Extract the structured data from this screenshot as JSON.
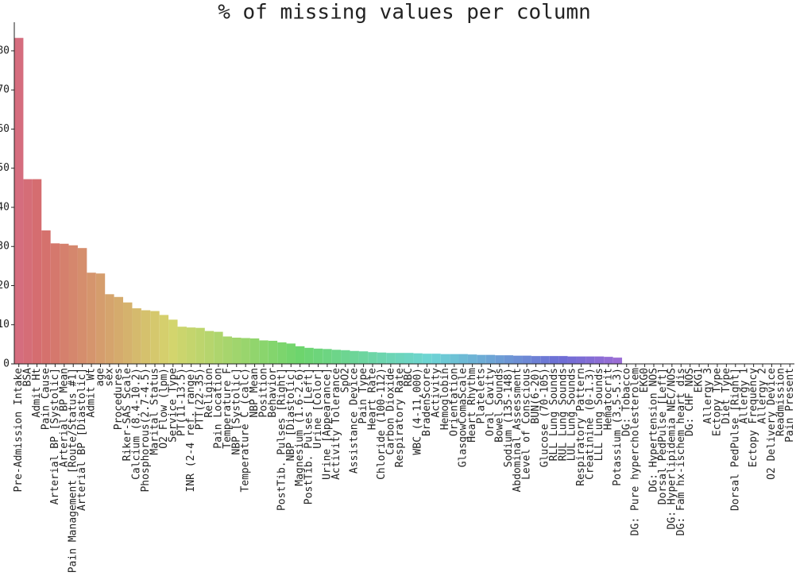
{
  "chart_data": {
    "type": "bar",
    "title": "% of missing values per column",
    "palette": "husl",
    "categories": [
      "Pre-Admission Intake",
      "BSA",
      "Admit Ht",
      "Pain Cause",
      "Arterial BP [Systolic]",
      "Arterial BP Mean",
      "Pain Management [Route/Status #1]",
      "Arterial BP [Diastolic]",
      "Admit Wt",
      "age",
      "sex",
      "Procedures",
      "Riker-SAS Scale",
      "Calcium (8.4-10.2)",
      "Phosphorous(2.7-4.5)",
      "Marital Status",
      "O2 Flow (lpm)",
      "Service Type",
      "PT(11-13.5)",
      "INR (2-4 ref. range)",
      "PTT(22-35)",
      "Religion",
      "Pain Location",
      "Temperature F",
      "NBP [Systolic]",
      "Temperature C (calc)",
      "NBP Mean",
      "Position",
      "Behavior",
      "PostTib. Pulses [Right]",
      "NBP [Diastolic]",
      "Magnesium (1.6-2.6)",
      "PostTib. Pulses [Left]",
      "Urine [Color]",
      "Urine [Appearance]",
      "Activity Tolerance",
      "SpO2",
      "Assistance Device",
      "Pain Type",
      "Heart Rate",
      "Chloride (100-112)",
      "Carbon Dioxide",
      "Respiratory Rate",
      "RBC",
      "WBC (4-11,000)",
      "BradenScore",
      "Activity",
      "Hemoglobin",
      "Orientation",
      "GlasgowComaScale",
      "Heart Rhythm",
      "Platelets",
      "Oral Cavity",
      "Bowel Sounds",
      "Sodium (135-148)",
      "Abdominal Assessment",
      "Level of Conscious",
      "BUN(6-20)",
      "Glucose (70-105)",
      "RLL Lung Sounds",
      "RUL Lung Sounds",
      "LUL Lung Sounds",
      "Respiratory Pattern",
      "Creatinine (0-1.3)",
      "LLL Lung Sounds",
      "Hematocrit",
      "Potassium (3.5-5.3)",
      "DG: Tobacco",
      "DG: Pure hypercholesterolem",
      "EKG0",
      "DG: Hypertension NOS",
      "Dorsal PedPulse [Left]",
      "DG: Hyperlipidemia NEC/NOS",
      "DG: Fam hx-ischem heart dis",
      "DG: CHF NOS",
      "EKG1",
      "Allergy 3",
      "Ectopy Type",
      "Diet Type",
      "Dorsal PedPulse [Right]",
      "Allergy 1",
      "Ectopy Frequency",
      "Allergy 2",
      "O2 Delivery Device",
      "Readmission",
      "Pain Present"
    ],
    "values": [
      83.3,
      47.2,
      47.2,
      34.1,
      30.8,
      30.7,
      30.3,
      29.6,
      23.3,
      23.1,
      17.8,
      17.1,
      15.7,
      14.2,
      13.7,
      13.5,
      12.5,
      11.3,
      9.5,
      9.3,
      9.2,
      8.4,
      8.2,
      7.0,
      6.7,
      6.6,
      6.5,
      6.0,
      5.9,
      5.5,
      5.2,
      4.5,
      4.1,
      3.9,
      3.8,
      3.6,
      3.5,
      3.3,
      3.2,
      3.0,
      2.9,
      2.8,
      2.8,
      2.8,
      2.7,
      2.6,
      2.6,
      2.5,
      2.5,
      2.5,
      2.4,
      2.3,
      2.3,
      2.2,
      2.2,
      2.1,
      2.1,
      2.0,
      2.0,
      2.0,
      2.0,
      1.9,
      1.9,
      1.9,
      1.9,
      1.8,
      1.6,
      0,
      0,
      0,
      0,
      0,
      0,
      0,
      0,
      0,
      0,
      0,
      0,
      0,
      0,
      0,
      0,
      0,
      0,
      0
    ],
    "ylim": [
      0,
      87.3
    ],
    "yticks": [
      0,
      10,
      20,
      30,
      40,
      50,
      60,
      70,
      80
    ]
  }
}
